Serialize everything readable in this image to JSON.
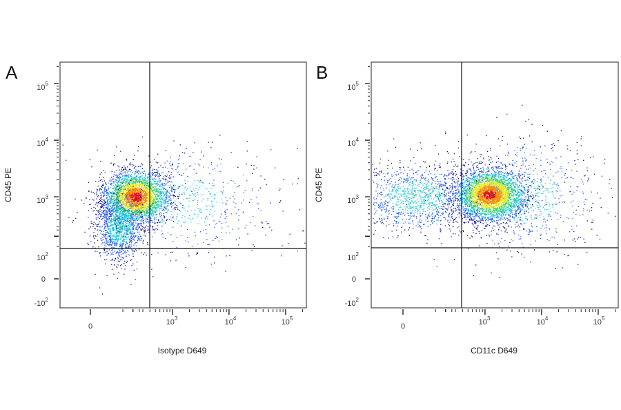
{
  "chart_data": [
    {
      "type": "scatter",
      "panel_label": "A",
      "xlabel": "Isotype D649",
      "ylabel": "CD45 PE",
      "x_scale": "biexponential",
      "y_scale": "biexponential",
      "xlim": [
        -300,
        250000
      ],
      "ylim": [
        -200,
        250000
      ],
      "x_ticks": [
        {
          "base": "0",
          "exp": ""
        },
        {
          "base": "10",
          "exp": "3"
        },
        {
          "base": "10",
          "exp": "4"
        },
        {
          "base": "10",
          "exp": "5"
        }
      ],
      "y_ticks": [
        {
          "base": "10",
          "exp": "5"
        },
        {
          "base": "10",
          "exp": "4"
        },
        {
          "base": "10",
          "exp": "3"
        },
        {
          "base": "10",
          "exp": "2"
        },
        {
          "base": "0",
          "exp": ""
        },
        {
          "base": "-10",
          "exp": "2"
        }
      ],
      "quadrant_gate": {
        "x": 500,
        "y": 150
      },
      "populations": [
        {
          "center_x": 120,
          "center_y": 1000,
          "level": "highest density"
        },
        {
          "center_x": 40,
          "center_y": 300,
          "level": "medium density tail"
        },
        {
          "center_x": 1500,
          "center_y": 800,
          "level": "sparse scatter"
        }
      ],
      "density_colors": [
        "#0a0a9a",
        "#1f5cff",
        "#19c8d8",
        "#39d26a",
        "#e8e81a",
        "#ff8a00",
        "#e01010"
      ],
      "grid": false
    },
    {
      "type": "scatter",
      "panel_label": "B",
      "xlabel": "CD11c D649",
      "ylabel": "CD45 PE",
      "x_scale": "biexponential",
      "y_scale": "biexponential",
      "xlim": [
        -300,
        250000
      ],
      "ylim": [
        -200,
        250000
      ],
      "x_ticks": [
        {
          "base": "0",
          "exp": ""
        },
        {
          "base": "10",
          "exp": "3"
        },
        {
          "base": "10",
          "exp": "4"
        },
        {
          "base": "10",
          "exp": "5"
        }
      ],
      "y_ticks": [
        {
          "base": "10",
          "exp": "5"
        },
        {
          "base": "10",
          "exp": "4"
        },
        {
          "base": "10",
          "exp": "3"
        },
        {
          "base": "10",
          "exp": "2"
        },
        {
          "base": "0",
          "exp": ""
        },
        {
          "base": "-10",
          "exp": "2"
        }
      ],
      "quadrant_gate": {
        "x": 500,
        "y": 150
      },
      "populations": [
        {
          "center_x": 1200,
          "center_y": 1100,
          "level": "highest density"
        },
        {
          "center_x": 10,
          "center_y": 1000,
          "level": "medium density"
        },
        {
          "center_x": 4000,
          "center_y": 1000,
          "level": "sparse scatter"
        }
      ],
      "density_colors": [
        "#0a0a9a",
        "#1f5cff",
        "#19c8d8",
        "#39d26a",
        "#e8e81a",
        "#ff8a00",
        "#e01010"
      ],
      "grid": false
    }
  ]
}
